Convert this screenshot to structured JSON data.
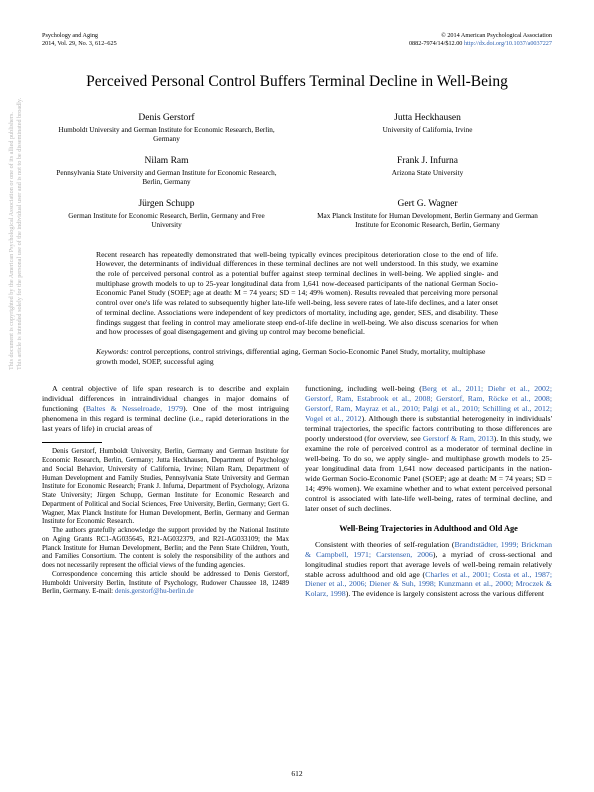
{
  "watermark": {
    "line1": "This document is copyrighted by the American Psychological Association or one of its allied publishers.",
    "line2": "This article is intended solely for the personal use of the individual user and is not to be disseminated broadly."
  },
  "header": {
    "journal": "Psychology and Aging",
    "issue": "2014, Vol. 29, No. 3, 612–625",
    "copyright": "© 2014 American Psychological Association",
    "doi_prefix": "0882-7974/14/$12.00   ",
    "doi_link": "http://dx.doi.org/10.1037/a0037227"
  },
  "title": "Perceived Personal Control Buffers Terminal Decline in Well-Being",
  "authors": [
    {
      "name": "Denis Gerstorf",
      "affil": "Humboldt University and German Institute for Economic Research, Berlin, Germany"
    },
    {
      "name": "Jutta Heckhausen",
      "affil": "University of California, Irvine"
    },
    {
      "name": "Nilam Ram",
      "affil": "Pennsylvania State University and German Institute for Economic Research, Berlin, Germany"
    },
    {
      "name": "Frank J. Infurna",
      "affil": "Arizona State University"
    },
    {
      "name": "Jürgen Schupp",
      "affil": "German Institute for Economic Research, Berlin, Germany and Free University"
    },
    {
      "name": "Gert G. Wagner",
      "affil": "Max Planck Institute for Human Development, Berlin Germany and German Institute for Economic Research, Berlin, Germany"
    }
  ],
  "abstract": "Recent research has repeatedly demonstrated that well-being typically evinces precipitous deterioration close to the end of life. However, the determinants of individual differences in these terminal declines are not well understood. In this study, we examine the role of perceived personal control as a potential buffer against steep terminal declines in well-being. We applied single- and multiphase growth models to up to 25-year longitudinal data from 1,641 now-deceased participants of the national German Socio-Economic Panel Study (SOEP; age at death: M = 74 years; SD = 14; 49% women). Results revealed that perceiving more personal control over one's life was related to subsequently higher late-life well-being, less severe rates of late-life declines, and a later onset of terminal decline. Associations were independent of key predictors of mortality, including age, gender, SES, and disability. These findings suggest that feeling in control may ameliorate steep end-of-life decline in well-being. We also discuss scenarios for when and how processes of goal disengagement and giving up control may become beneficial.",
  "keywords_label": "Keywords:",
  "keywords_text": " control perceptions, control strivings, differential aging, German Socio-Economic Panel Study, mortality, multiphase growth model, SOEP, successful aging",
  "body": {
    "p1a": "A central objective of life span research is to describe and explain individual differences in intraindividual changes in major domains of functioning (",
    "p1_cite1": "Baltes & Nesselroade, 1979",
    "p1b": "). One of the most intriguing phenomena in this regard is terminal decline (i.e., rapid deteriorations in the last years of life) in crucial areas of",
    "p2a": "functioning, including well-being (",
    "p2_cites": "Berg et al., 2011; Diehr et al., 2002; Gerstorf, Ram, Estabrook et al., 2008; Gerstorf, Ram, Röcke et al., 2008; Gerstorf, Ram, Mayraz et al., 2010; Palgi et al., 2010; Schilling et al., 2012; Vogel et al., 2012",
    "p2b": "). Although there is substantial heterogeneity in individuals' terminal trajectories, the specific factors contributing to those differences are poorly understood (for overview, see ",
    "p2_cite2": "Gerstorf & Ram, 2013",
    "p2c": "). In this study, we examine the role of perceived control as a moderator of terminal decline in well-being. To do so, we apply single- and multiphase growth models to 25-year longitudinal data from 1,641 now deceased participants in the nation-wide German Socio-Economic Panel (SOEP; age at death: M = 74 years; SD = 14; 49% women). We examine whether and to what extent perceived personal control is associated with late-life well-being, rates of terminal decline, and later onset of such declines.",
    "heading1": "Well-Being Trajectories in Adulthood and Old Age",
    "p3a": "Consistent with theories of self-regulation (",
    "p3_cites1": "Brandtstädter, 1999; Brickman & Campbell, 1971; Carstensen, 2006",
    "p3b": "), a myriad of cross-sectional and longitudinal studies report that average levels of well-being remain relatively stable across adulthood and old age (",
    "p3_cites2": "Charles et al., 2001; Costa et al., 1987; Diener et al., 2006; Diener & Suh, 1998; Kunzmann et al., 2000; Mroczek & Kolarz, 1998",
    "p3c": "). The evidence is largely consistent across the various different"
  },
  "footnote": {
    "f1": "Denis Gerstorf, Humboldt University, Berlin, Germany and German Institute for Economic Research, Berlin, Germany; Jutta Heckhausen, Department of Psychology and Social Behavior, University of California, Irvine; Nilam Ram, Department of Human Development and Family Studies, Pennsylvania State University and German Institute for Economic Research; Frank J. Infurna, Department of Psychology, Arizona State University; Jürgen Schupp, German Institute for Economic Research and Department of Political and Social Sciences, Free University, Berlin, Germany; Gert G. Wagner, Max Planck Institute for Human Development, Berlin, Germany and German Institute for Economic Research.",
    "f2": "The authors gratefully acknowledge the support provided by the National Institute on Aging Grants RC1-AG035645, R21-AG032379, and R21-AG033109; the Max Planck Institute for Human Development, Berlin; and the Penn State Children, Youth, and Families Consortium. The content is solely the responsibility of the authors and does not necessarily represent the official views of the funding agencies.",
    "f3a": "Correspondence concerning this article should be addressed to Denis Gerstorf, Humboldt University Berlin, Institute of Psychology, Rudower Chaussee 18, 12489 Berlin, Germany. E-mail: ",
    "f3_email": "denis.gerstorf@hu-berlin.de"
  },
  "pagenum": "612"
}
